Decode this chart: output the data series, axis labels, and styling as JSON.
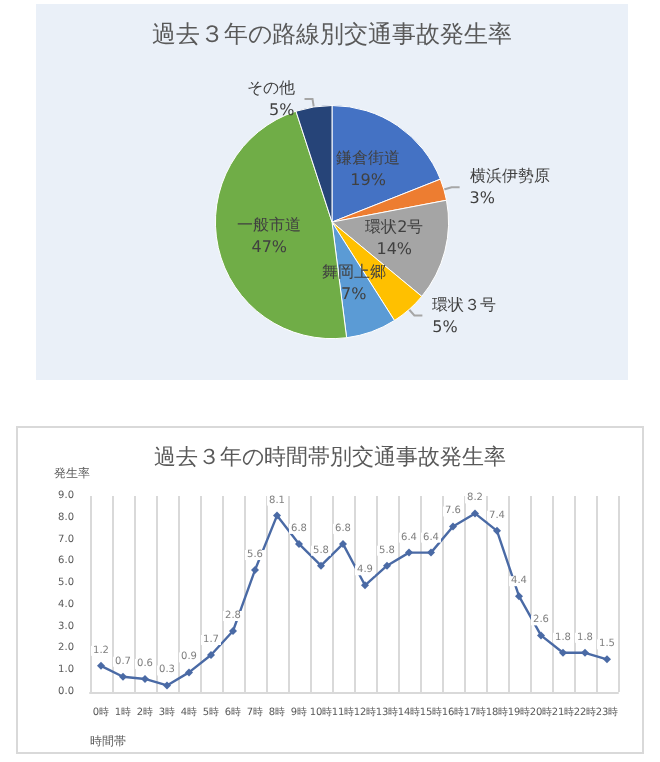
{
  "chart_data": [
    {
      "type": "pie",
      "title": "過去３年の路線別交通事故発生率",
      "categories": [
        "鎌倉街道",
        "横浜伊勢原",
        "環状2号",
        "環状３号",
        "舞岡上郷",
        "一般市道",
        "その他"
      ],
      "values": [
        19,
        3,
        14,
        5,
        7,
        47,
        5
      ],
      "value_labels": [
        "19%",
        "3%",
        "14%",
        "5%",
        "7%",
        "47%",
        "5%"
      ],
      "colors": [
        "#4472c4",
        "#ed7d31",
        "#a5a5a5",
        "#ffc000",
        "#5b9bd5",
        "#70ad47",
        "#264478"
      ],
      "legend": false
    },
    {
      "type": "line",
      "title": "過去３年の時間帯別交通事故発生率",
      "xlabel": "時間帯",
      "ylabel": "発生率",
      "categories": [
        "0時",
        "1時",
        "2時",
        "3時",
        "4時",
        "5時",
        "6時",
        "7時",
        "8時",
        "9時",
        "10時",
        "11時",
        "12時",
        "13時",
        "14時",
        "15時",
        "16時",
        "17時",
        "18時",
        "19時",
        "20時",
        "21時",
        "22時",
        "23時"
      ],
      "series": [
        {
          "color": "#4a6aa5",
          "values": [
            1.2,
            0.7,
            0.6,
            0.3,
            0.9,
            1.7,
            2.8,
            5.6,
            8.1,
            6.8,
            5.8,
            6.8,
            4.9,
            5.8,
            6.4,
            6.4,
            7.6,
            8.2,
            7.4,
            4.4,
            2.6,
            1.8,
            1.8,
            1.5
          ]
        }
      ],
      "ylim": [
        0,
        9
      ],
      "yticks": [
        {
          "value": 0,
          "label": "0.0"
        },
        {
          "value": 1,
          "label": "1.0"
        },
        {
          "value": 2,
          "label": "2.0"
        },
        {
          "value": 3,
          "label": "3.0"
        },
        {
          "value": 4,
          "label": "4.0"
        },
        {
          "value": 5,
          "label": "5.0"
        },
        {
          "value": 6,
          "label": "6.0"
        },
        {
          "value": 7,
          "label": "7.0"
        },
        {
          "value": 8,
          "label": "8.0"
        },
        {
          "value": 9,
          "label": "9.0"
        }
      ],
      "grid": "x",
      "marker": "diamond",
      "line_style": "solid",
      "data_labels": true,
      "legend": false
    }
  ]
}
